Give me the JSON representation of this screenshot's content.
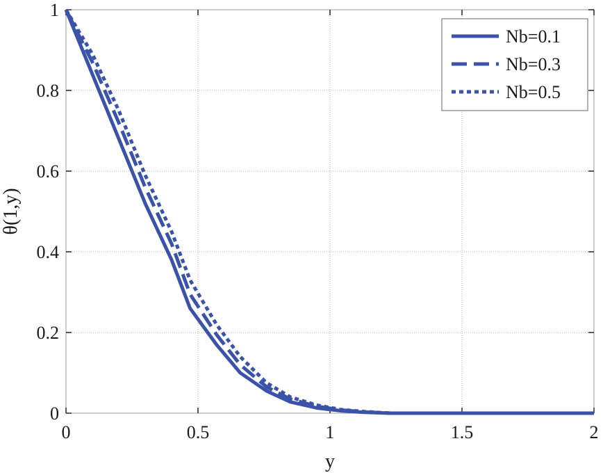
{
  "chart_data": {
    "type": "line",
    "title": "",
    "xlabel": "y",
    "ylabel": "θ(1,y)",
    "xlim": [
      0,
      2
    ],
    "ylim": [
      0,
      1
    ],
    "xticks": [
      0,
      0.5,
      1,
      1.5,
      2
    ],
    "xtick_labels": [
      "0",
      "0.5",
      "1",
      "1.5",
      "2"
    ],
    "yticks": [
      0,
      0.2,
      0.4,
      0.6,
      0.8,
      1
    ],
    "ytick_labels": [
      "0",
      "0.2",
      "0.4",
      "0.6",
      "0.8",
      "1"
    ],
    "grid": true,
    "legend_position": "top-right",
    "line_color": "#3a52a8",
    "series": [
      {
        "name": "Nb=0.1",
        "style": "solid",
        "x": [
          0,
          0.1,
          0.2,
          0.3,
          0.4,
          0.47,
          0.57,
          0.66,
          0.76,
          0.85,
          0.95,
          1.04,
          1.13,
          1.23,
          1.5,
          2.0
        ],
        "y": [
          1.0,
          0.84,
          0.68,
          0.52,
          0.38,
          0.26,
          0.17,
          0.1,
          0.055,
          0.028,
          0.013,
          0.006,
          0.002,
          0.0,
          0.0,
          0.0
        ]
      },
      {
        "name": "Nb=0.3",
        "style": "dashed",
        "x": [
          0,
          0.1,
          0.2,
          0.3,
          0.4,
          0.47,
          0.57,
          0.66,
          0.76,
          0.85,
          0.95,
          1.04,
          1.13,
          1.23,
          1.5,
          2.0
        ],
        "y": [
          1.0,
          0.87,
          0.72,
          0.56,
          0.42,
          0.295,
          0.195,
          0.12,
          0.065,
          0.035,
          0.017,
          0.008,
          0.003,
          0.0,
          0.0,
          0.0
        ]
      },
      {
        "name": "Nb=0.5",
        "style": "dotted",
        "x": [
          0,
          0.1,
          0.2,
          0.3,
          0.4,
          0.47,
          0.57,
          0.66,
          0.76,
          0.85,
          0.95,
          1.04,
          1.13,
          1.23,
          1.5,
          2.0
        ],
        "y": [
          1.0,
          0.89,
          0.75,
          0.59,
          0.45,
          0.33,
          0.22,
          0.14,
          0.075,
          0.04,
          0.02,
          0.009,
          0.004,
          0.0,
          0.0,
          0.0
        ]
      }
    ]
  }
}
